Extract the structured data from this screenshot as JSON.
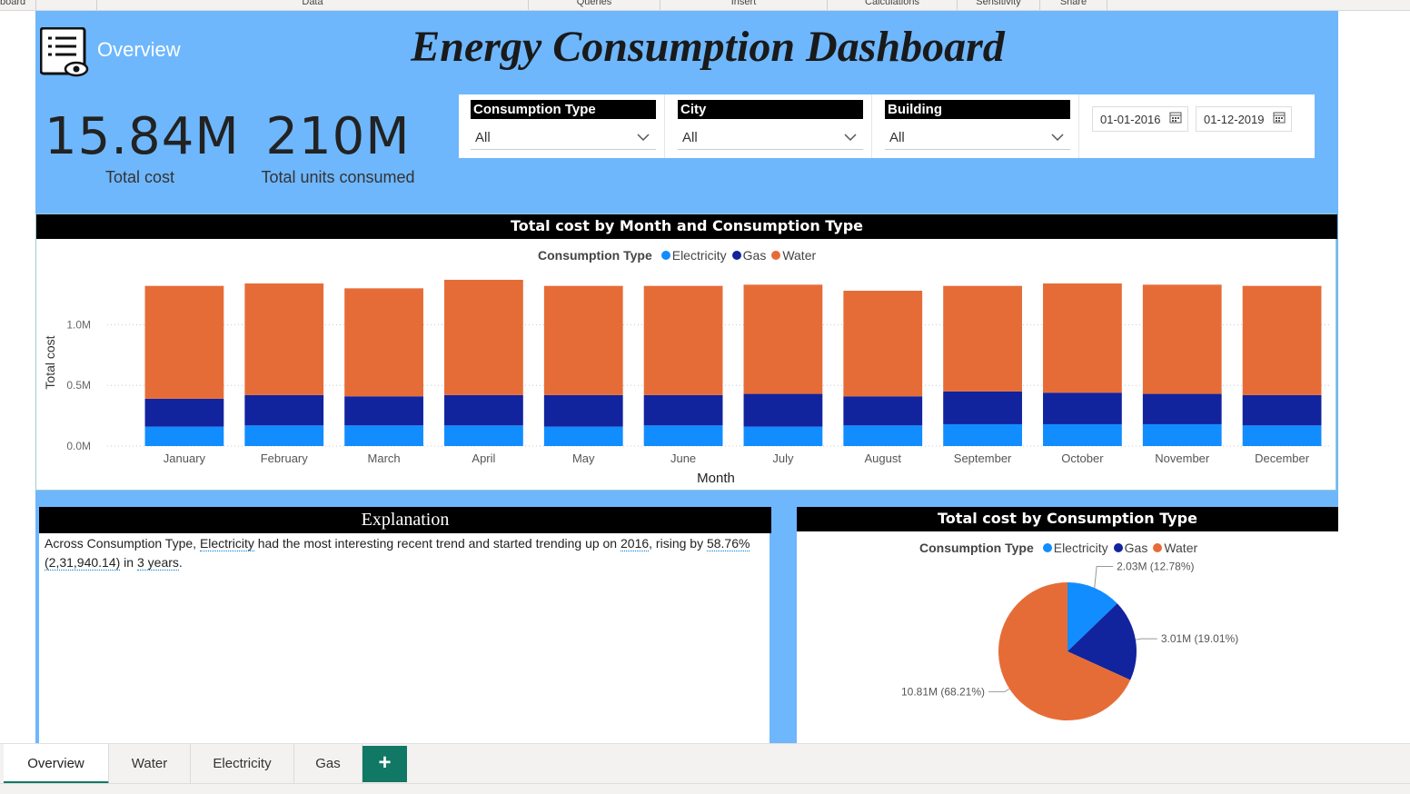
{
  "ribbon": {
    "groups": [
      "board",
      "Data",
      "Queries",
      "Insert",
      "Calculations",
      "Sensitivity",
      "Share"
    ]
  },
  "header": {
    "overview_label": "Overview",
    "title": "Energy Consumption Dashboard"
  },
  "kpis": {
    "total_cost_value": "15.84M",
    "total_cost_label": "Total cost",
    "total_units_value": "210M",
    "total_units_label": "Total units consumed"
  },
  "filters": {
    "consumption_type": {
      "label": "Consumption Type",
      "value": "All"
    },
    "city": {
      "label": "City",
      "value": "All"
    },
    "building": {
      "label": "Building",
      "value": "All"
    },
    "date_start": "01-01-2016",
    "date_end": "01-12-2019"
  },
  "colors": {
    "electricity": "#118dff",
    "gas": "#12239e",
    "water": "#e66c37",
    "report_bg": "#6eb7fd",
    "accent": "#117865"
  },
  "icons": {
    "overview": "report-eye-icon",
    "dropdown": "chevron-down-icon",
    "calendar": "calendar-icon",
    "add_page": "plus-icon"
  },
  "bar_chart": {
    "title": "Total cost by Month and Consumption Type",
    "legend_title": "Consumption Type",
    "legend_items": [
      "Electricity",
      "Gas",
      "Water"
    ],
    "ylabel": "Total cost",
    "xlabel": "Month",
    "ytick_labels": [
      "0.0M",
      "0.5M",
      "1.0M"
    ]
  },
  "explanation": {
    "title": "Explanation",
    "text_1": "Across Consumption Type, ",
    "link_1": "Electricity",
    "text_2": " had the most interesting recent trend and started trending up on ",
    "link_2": "2016",
    "text_3": ", rising by ",
    "link_3": "58.76%",
    "text_4": " ",
    "link_4": "(2,31,940.14)",
    "text_5": " in ",
    "link_5": "3 years",
    "text_6": "."
  },
  "pie_chart": {
    "title": "Total cost by Consumption Type",
    "legend_title": "Consumption Type",
    "legend_items": [
      "Electricity",
      "Gas",
      "Water"
    ]
  },
  "tabs": {
    "items": [
      "Overview",
      "Water",
      "Electricity",
      "Gas"
    ],
    "active": "Overview",
    "add_label": "+"
  },
  "chart_data": [
    {
      "type": "bar",
      "stacked": true,
      "title": "Total cost by Month and Consumption Type",
      "xlabel": "Month",
      "ylabel": "Total cost",
      "categories": [
        "January",
        "February",
        "March",
        "April",
        "May",
        "June",
        "July",
        "August",
        "September",
        "October",
        "November",
        "December"
      ],
      "series": [
        {
          "name": "Electricity",
          "values": [
            0.16,
            0.17,
            0.17,
            0.17,
            0.16,
            0.17,
            0.16,
            0.17,
            0.18,
            0.18,
            0.18,
            0.17
          ]
        },
        {
          "name": "Gas",
          "values": [
            0.23,
            0.25,
            0.24,
            0.25,
            0.26,
            0.25,
            0.27,
            0.24,
            0.27,
            0.26,
            0.25,
            0.25
          ]
        },
        {
          "name": "Water",
          "values": [
            0.93,
            0.92,
            0.89,
            0.95,
            0.9,
            0.9,
            0.9,
            0.87,
            0.87,
            0.9,
            0.9,
            0.9
          ]
        }
      ],
      "yticks": [
        0,
        0.5,
        1.0
      ],
      "ytick_labels": [
        "0.0M",
        "0.5M",
        "1.0M"
      ],
      "ylim": [
        0,
        1.4
      ],
      "legend": "top-center",
      "grid": true
    },
    {
      "type": "pie",
      "title": "Total cost by Consumption Type",
      "slices": [
        {
          "name": "Electricity",
          "value": 2.03,
          "percent": 12.78,
          "label": "2.03M (12.78%)"
        },
        {
          "name": "Gas",
          "value": 3.01,
          "percent": 19.01,
          "label": "3.01M (19.01%)"
        },
        {
          "name": "Water",
          "value": 10.81,
          "percent": 68.21,
          "label": "10.81M (68.21%)"
        }
      ],
      "legend": "top-center"
    }
  ]
}
